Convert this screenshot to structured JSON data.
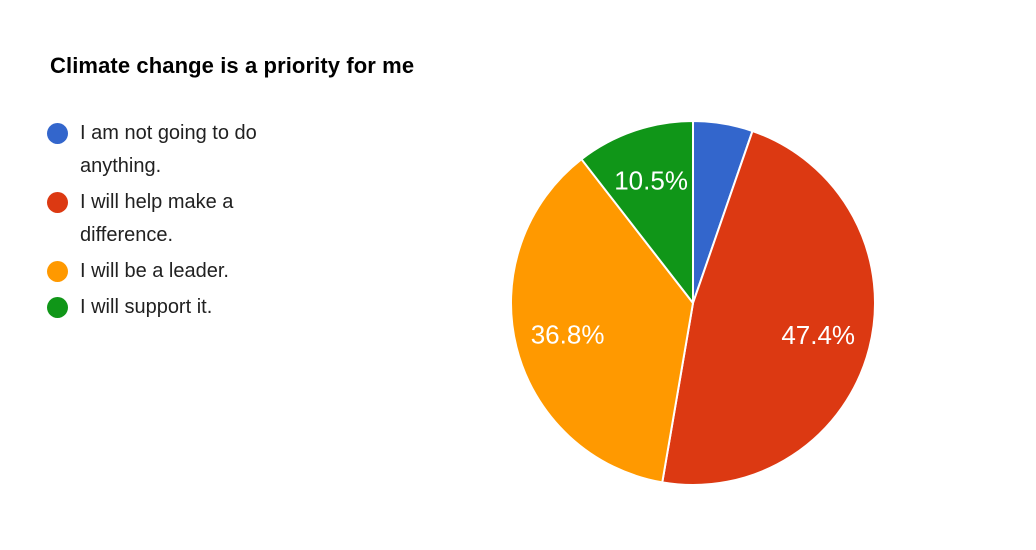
{
  "page": {
    "background": "#ffffff",
    "text_color": "#212121",
    "title_color": "#000000"
  },
  "chart_data": {
    "type": "pie",
    "title": "Climate change is a priority for me",
    "legend_position": "left",
    "start_angle_deg": 0,
    "clockwise": true,
    "slice_border_color": "#ffffff",
    "data_label_color": "#ffffff",
    "slices": [
      {
        "label": "I am not going to do anything.",
        "value_pct": 5.3,
        "color": "#3366CC",
        "data_label": ""
      },
      {
        "label": "I will help make a difference.",
        "value_pct": 47.4,
        "color": "#DC3912",
        "data_label": "47.4%"
      },
      {
        "label": "I will be a leader.",
        "value_pct": 36.8,
        "color": "#FF9900",
        "data_label": "36.8%"
      },
      {
        "label": "I will support it.",
        "value_pct": 10.5,
        "color": "#109618",
        "data_label": "10.5%"
      }
    ]
  }
}
